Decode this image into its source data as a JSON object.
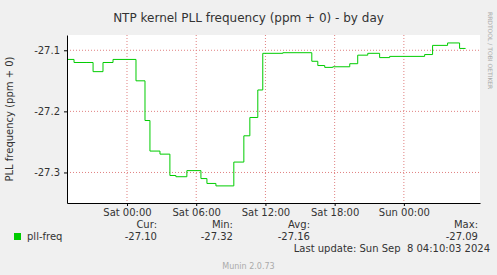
{
  "chart_data": {
    "type": "line",
    "title": "NTP kernel PLL frequency (ppm + 0) - by day",
    "y_label": "PLL frequency (ppm + 0)",
    "watermark": "RRDTOOL / TOBI OETIKER",
    "x": [
      -5.19,
      -4.59,
      -3.55,
      -2.94,
      -2.08,
      -1.21,
      0.78,
      1.56,
      1.99,
      2.86,
      3.72,
      4.24,
      5.19,
      6.41,
      6.93,
      7.71,
      9.26,
      10.13,
      10.65,
      11.34,
      11.77,
      13.51,
      16.02,
      16.54,
      17.14,
      17.84,
      19.31,
      20.0,
      20.87,
      21.9,
      22.77,
      25.8,
      26.49,
      27.79,
      28.83,
      29.35
    ],
    "series": [
      {
        "name": "pll-freq",
        "color": "#00cc00",
        "line_style": "step",
        "values": [
          -27.115,
          -27.12,
          -27.12,
          -27.135,
          -27.12,
          -27.115,
          -27.15,
          -27.215,
          -27.265,
          -27.27,
          -27.305,
          -27.307,
          -27.297,
          -27.31,
          -27.318,
          -27.322,
          -27.283,
          -27.24,
          -27.21,
          -27.165,
          -27.105,
          -27.104,
          -27.118,
          -27.125,
          -27.128,
          -27.127,
          -27.122,
          -27.108,
          -27.105,
          -27.112,
          -27.11,
          -27.107,
          -27.092,
          -27.088,
          -27.097,
          -27.097
        ]
      }
    ],
    "xlim": [
      -5.2,
      30.6
    ],
    "xticks": [
      {
        "value": 0,
        "label": "Sat 00:00"
      },
      {
        "value": 6,
        "label": "Sat 06:00"
      },
      {
        "value": 12,
        "label": "Sat 12:00"
      },
      {
        "value": 18,
        "label": "Sat 18:00"
      },
      {
        "value": 24,
        "label": "Sun 00:00"
      }
    ],
    "ylim": [
      -27.35,
      -27.075
    ],
    "yticks": [
      -27.3,
      -27.2,
      -27.1
    ],
    "grid": true,
    "stats": {
      "names": [
        "Cur:",
        "Min:",
        "Avg:",
        "Max:"
      ],
      "values": [
        -27.1,
        -27.32,
        -27.16,
        -27.09
      ]
    },
    "last_update": "Last update: Sun Sep  8 04:10:03 2024",
    "credit": "Munin 2.0.73"
  }
}
